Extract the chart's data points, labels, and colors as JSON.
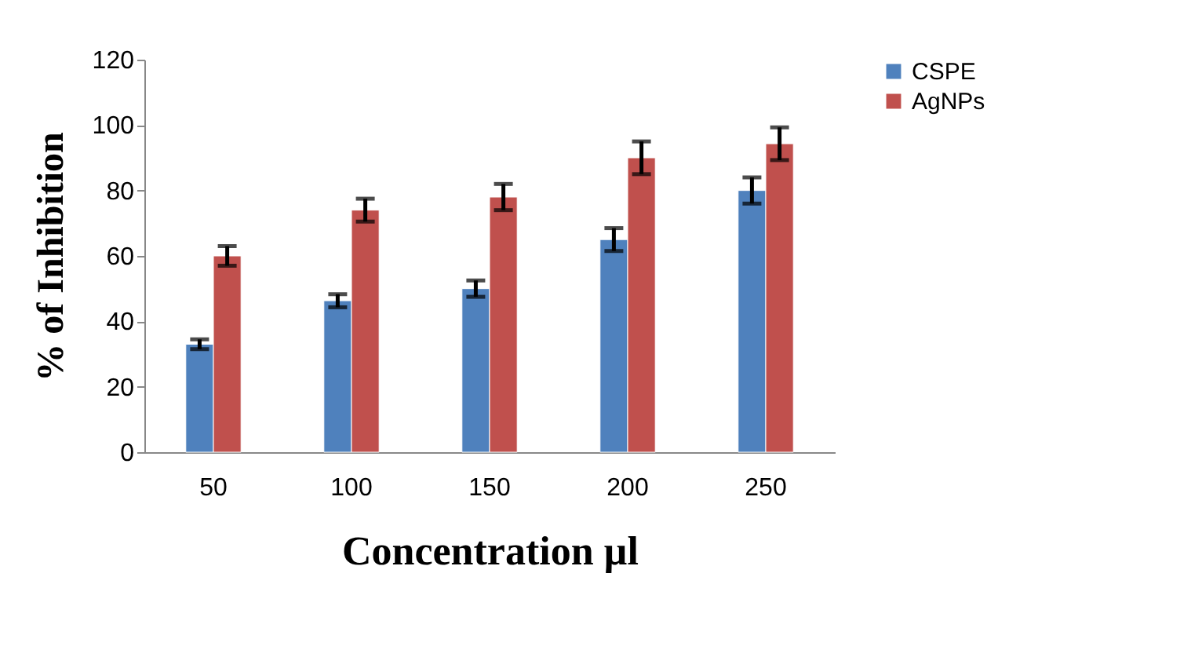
{
  "chart_data": {
    "type": "bar",
    "xlabel": "Concentration µl",
    "ylabel": "% of Inhibition",
    "categories": [
      "50",
      "100",
      "150",
      "200",
      "250"
    ],
    "series": [
      {
        "name": "CSPE",
        "color": "#4f81bd",
        "values": [
          33,
          46.3,
          50,
          65,
          80
        ],
        "errors": [
          1.5,
          2,
          2.5,
          3.5,
          4
        ]
      },
      {
        "name": "AgNPs",
        "color": "#c0504d",
        "values": [
          60,
          74,
          78,
          90,
          94.3
        ],
        "errors": [
          3,
          3.5,
          4,
          5,
          5
        ]
      }
    ],
    "ylim": [
      0,
      120
    ],
    "yticks": [
      0,
      20,
      40,
      60,
      80,
      100,
      120
    ],
    "grid": false,
    "legend": "right"
  }
}
